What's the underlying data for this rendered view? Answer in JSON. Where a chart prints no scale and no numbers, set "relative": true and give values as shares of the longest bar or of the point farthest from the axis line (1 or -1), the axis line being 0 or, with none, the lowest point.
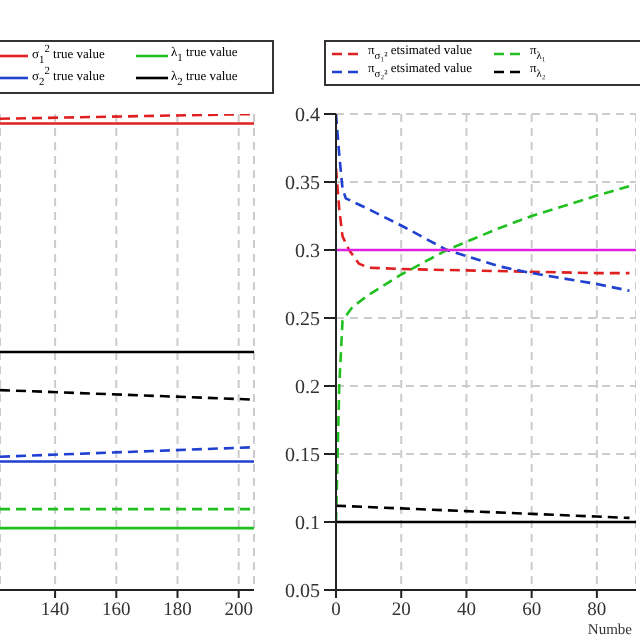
{
  "chart_data": [
    {
      "type": "line",
      "relative": true,
      "xlim": [
        122,
        205
      ],
      "xticks": [
        140,
        160,
        180,
        200
      ],
      "grid": "x",
      "legend": "top",
      "marker": "none",
      "series": [
        {
          "name": "σ$_{1}$$^{2}$ true value",
          "color": "#e02020",
          "line_style": "solid",
          "x": [
            122,
            205
          ],
          "values": [
            0.98,
            0.98
          ]
        },
        {
          "name": "σ$_{2}$$^{2}$ true value",
          "color": "#2040d0",
          "line_style": "solid",
          "x": [
            122,
            205
          ],
          "values": [
            0.27,
            0.27
          ]
        },
        {
          "name": "λ$_{1}$ true value",
          "color": "#20c020",
          "line_style": "solid",
          "x": [
            122,
            205
          ],
          "values": [
            0.13,
            0.13
          ]
        },
        {
          "name": "λ$_{2}$ true value",
          "color": "#000000",
          "line_style": "solid",
          "x": [
            122,
            205
          ],
          "values": [
            0.5,
            0.5
          ]
        },
        {
          "color": "#e02020",
          "line_style": "dashed",
          "x": [
            122,
            205
          ],
          "values": [
            0.99,
            1
          ]
        },
        {
          "color": "#2040d0",
          "line_style": "dashed",
          "x": [
            122,
            205
          ],
          "values": [
            0.28,
            0.3
          ]
        },
        {
          "color": "#20c020",
          "line_style": "dashed",
          "x": [
            122,
            205
          ],
          "values": [
            0.17,
            0.17
          ]
        },
        {
          "color": "#000000",
          "line_style": "dashed",
          "x": [
            122,
            205
          ],
          "values": [
            0.42,
            0.4
          ]
        }
      ]
    },
    {
      "type": "line",
      "xlim": [
        0,
        92
      ],
      "xticks": [
        0,
        20,
        40,
        60,
        80
      ],
      "ylim": [
        0.05,
        0.4
      ],
      "yticks": [
        0.05,
        0.1,
        0.15,
        0.2,
        0.25,
        0.3,
        0.35,
        0.4
      ],
      "grid": true,
      "legend": "top",
      "marker": "none",
      "xlabel": "Numbe",
      "series": [
        {
          "name": "π$_{σ₁²}$ etsimated value",
          "color": "#e02020",
          "line_style": "dashed",
          "x": [
            0,
            1,
            2,
            4,
            7,
            10,
            20,
            40,
            60,
            80,
            90
          ],
          "values": [
            0.36,
            0.33,
            0.31,
            0.3,
            0.29,
            0.287,
            0.286,
            0.285,
            0.284,
            0.283,
            0.283
          ]
        },
        {
          "name": "π$_{σ₂²}$ etsimated value",
          "color": "#2040d0",
          "line_style": "dashed",
          "x": [
            0,
            1,
            2,
            3,
            10,
            20,
            34,
            50,
            60,
            80,
            90
          ],
          "values": [
            0.4,
            0.37,
            0.345,
            0.338,
            0.33,
            0.318,
            0.3,
            0.288,
            0.283,
            0.275,
            0.27
          ]
        },
        {
          "name": "π$_{λ₁}$",
          "color": "#20c020",
          "line_style": "dashed",
          "x": [
            0,
            1,
            2,
            5,
            10,
            20,
            34,
            50,
            60,
            80,
            90
          ],
          "values": [
            0.1,
            0.2,
            0.248,
            0.258,
            0.267,
            0.282,
            0.3,
            0.316,
            0.325,
            0.34,
            0.347
          ]
        },
        {
          "name": "π$_{λ₂}$",
          "color": "#000000",
          "line_style": "dashed",
          "x": [
            0,
            20,
            40,
            60,
            80,
            90
          ],
          "values": [
            0.112,
            0.11,
            0.108,
            0.106,
            0.104,
            0.103
          ]
        },
        {
          "color": "#e020e0",
          "line_style": "solid",
          "x": [
            0,
            92
          ],
          "values": [
            0.3,
            0.3
          ]
        },
        {
          "color": "#000000",
          "line_style": "solid",
          "x": [
            0,
            92
          ],
          "values": [
            0.1,
            0.1
          ]
        }
      ]
    }
  ]
}
